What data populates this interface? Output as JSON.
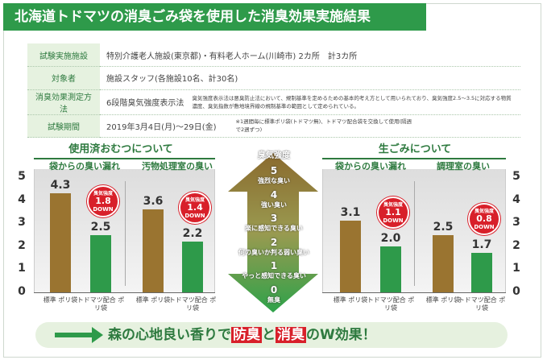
{
  "title": "北海道トドマツの消臭ごみ袋を使用した消臭効果実施結果",
  "table": [
    {
      "label": "試験実施施設",
      "value": "特別介護老人施設(東京都)・有料老人ホーム(川崎市) 2カ所　計3カ所"
    },
    {
      "label": "対象者",
      "value": "施設スタッフ(各施設10名、計30名)"
    },
    {
      "label": "消臭効果測定方法",
      "value": "6段階臭気強度表示法",
      "note": "臭気強度表示法は悪臭防止法において、規制基準を定めるための基本的考え方として用いられており、臭気強度2.5〜3.5に対応する物質濃度、臭気指数が敷地境界線の規制基準の範囲として定められている。"
    },
    {
      "label": "試験期間",
      "value": "2019年3月4日(月)〜29日(金)",
      "note": "※1週間毎に標準ポリ袋(トドマツ無)、トドマツ配合袋を交換して使用(隔週で2週ずつ)"
    }
  ],
  "scale": {
    "title": "臭気強度",
    "levels": [
      {
        "n": "5",
        "t": "強烈な臭い"
      },
      {
        "n": "4",
        "t": "強い臭い"
      },
      {
        "n": "3",
        "t": "楽に感知できる臭い"
      },
      {
        "n": "2",
        "t": "何の臭いか判る弱い臭い"
      },
      {
        "n": "1",
        "t": "やっと感知できる臭い"
      },
      {
        "n": "0",
        "t": "無臭"
      }
    ]
  },
  "chart_data": [
    {
      "type": "bar",
      "title": "使用済おむつについて",
      "ylim": [
        0,
        5
      ],
      "yticks": [
        "0",
        "1",
        "2",
        "3",
        "4",
        "5"
      ],
      "categories": [
        "標準 ポリ袋",
        "トドマツ配合 ポリ袋"
      ],
      "groups": [
        {
          "name": "袋からの臭い漏れ",
          "values": [
            4.3,
            2.5
          ],
          "badge": {
            "label": "臭気強度",
            "value": "1.8",
            "unit": "DOWN"
          }
        },
        {
          "name": "汚物処理室の臭い",
          "values": [
            3.6,
            2.2
          ],
          "badge": {
            "label": "臭気強度",
            "value": "1.4",
            "unit": "DOWN"
          }
        }
      ]
    },
    {
      "type": "bar",
      "title": "生ごみについて",
      "ylim": [
        0,
        5
      ],
      "yticks": [
        "0",
        "1",
        "2",
        "3",
        "4",
        "5"
      ],
      "categories": [
        "標準 ポリ袋",
        "トドマツ配合 ポリ袋"
      ],
      "groups": [
        {
          "name": "袋からの臭い漏れ",
          "values": [
            3.1,
            2.0
          ],
          "badge": {
            "label": "臭気強度",
            "value": "1.1",
            "unit": "DOWN"
          }
        },
        {
          "name": "調理室の臭い",
          "values": [
            2.5,
            1.7
          ],
          "badge": {
            "label": "臭気強度",
            "value": "0.8",
            "unit": "DOWN"
          }
        }
      ]
    }
  ],
  "banner": {
    "a": "森の心地良い香りで",
    "b": "防臭",
    "c": "と",
    "d": "消臭",
    "e": "のW効果！"
  },
  "colors": {
    "green": "#2e9a4a",
    "brown": "#9a7430",
    "red": "#d8202a"
  }
}
